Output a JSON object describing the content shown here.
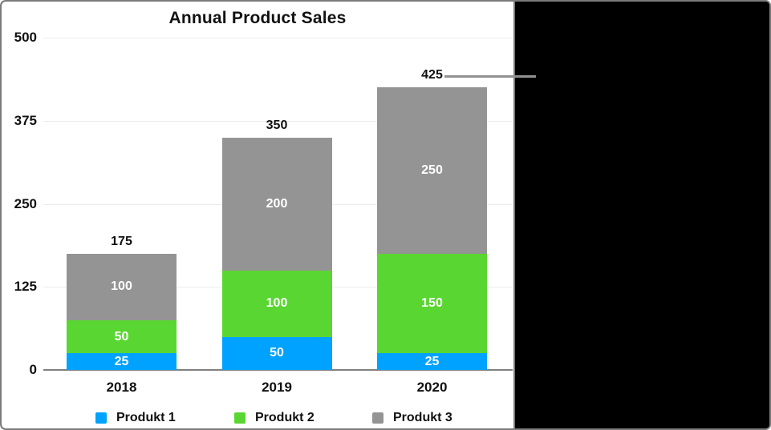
{
  "figure": {
    "panel_background": "#ffffff",
    "right_panel_background": "#000000",
    "border_color": "#7b7b7b",
    "callout": {
      "color": "#919191",
      "points_to_label": "425"
    }
  },
  "chart_data": {
    "type": "bar",
    "stacked": true,
    "title": "Annual Product Sales",
    "categories": [
      "2018",
      "2019",
      "2020"
    ],
    "series": [
      {
        "name": "Produkt 1",
        "color": "#00a2ff",
        "values": [
          25,
          50,
          25
        ]
      },
      {
        "name": "Produkt 2",
        "color": "#5ad632",
        "values": [
          50,
          100,
          150
        ]
      },
      {
        "name": "Produkt 3",
        "color": "#949494",
        "values": [
          100,
          200,
          250
        ]
      }
    ],
    "totals": [
      175,
      350,
      425
    ],
    "y_ticks": [
      0,
      125,
      250,
      375,
      500
    ],
    "ylim": [
      0,
      500
    ],
    "xlabel": "",
    "ylabel": "",
    "grid": true,
    "legend_position": "bottom",
    "value_label_color": "#ffffff",
    "total_label_color": "#111111",
    "gridline_color": "#ececec",
    "axis_color": "#808080"
  }
}
